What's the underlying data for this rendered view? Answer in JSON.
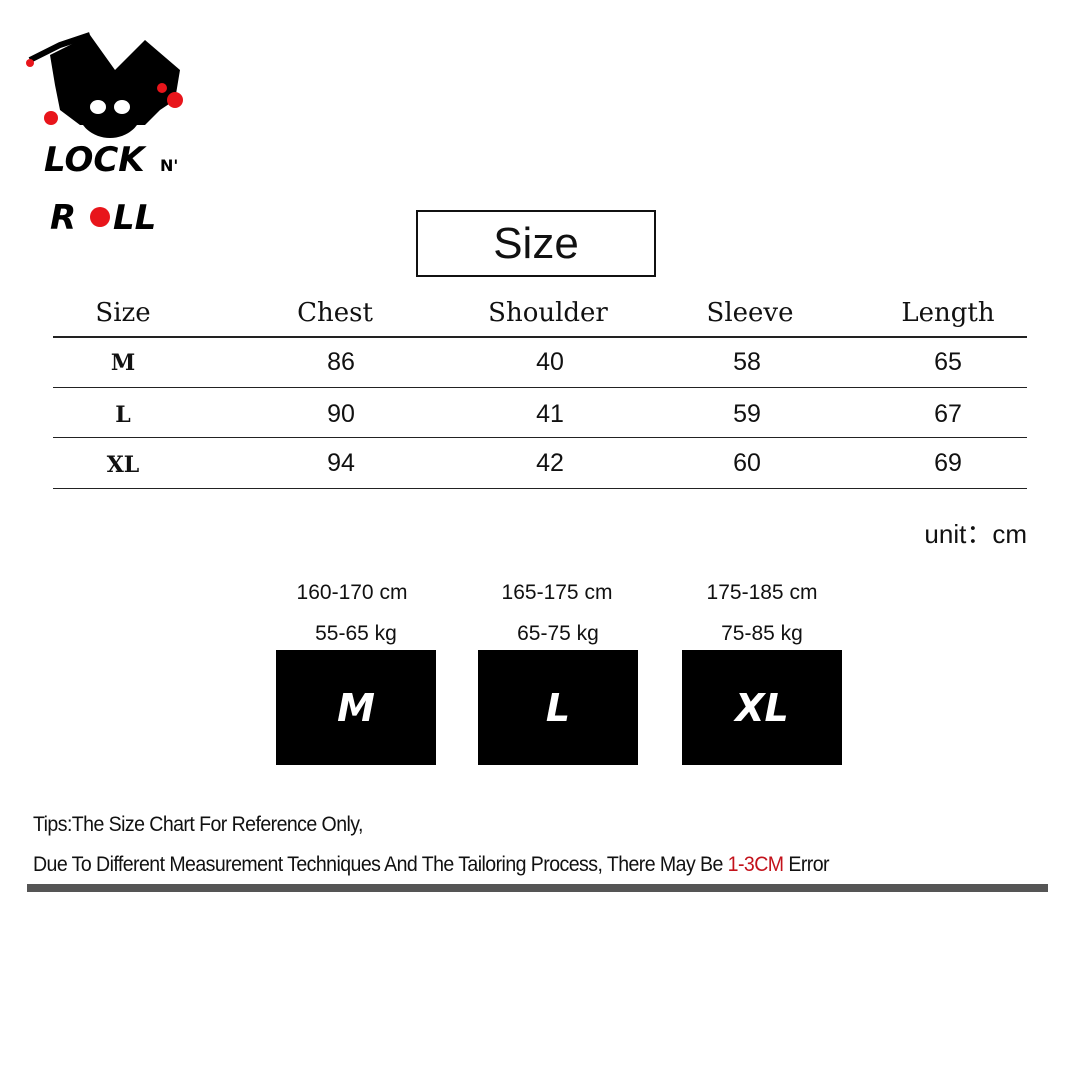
{
  "logo": {
    "text": "LOCK N' ROLL",
    "accent": "#e8151b"
  },
  "title": "Size",
  "table": {
    "headers": [
      "Size",
      "Chest",
      "Shoulder",
      "Sleeve",
      "Length"
    ],
    "rows": [
      [
        "M",
        "86",
        "40",
        "58",
        "65"
      ],
      [
        "L",
        "90",
        "41",
        "59",
        "67"
      ],
      [
        "XL",
        "94",
        "42",
        "60",
        "69"
      ]
    ]
  },
  "unit": "unit：cm",
  "fit_guide": [
    {
      "height": "160-170 cm",
      "weight": "55-65 kg",
      "size": "M"
    },
    {
      "height": "165-175 cm",
      "weight": "65-75 kg",
      "size": "L"
    },
    {
      "height": "175-185 cm",
      "weight": "75-85 kg",
      "size": "XL"
    }
  ],
  "tips": {
    "line1": "Tips:The Size Chart For Reference Only,",
    "line2_prefix": "Due To Different Measurement Techniques And The Tailoring Process, There May Be ",
    "line2_highlight": "1-3CM",
    "line2_suffix": " Error",
    "highlight_color": "#c3121b"
  }
}
